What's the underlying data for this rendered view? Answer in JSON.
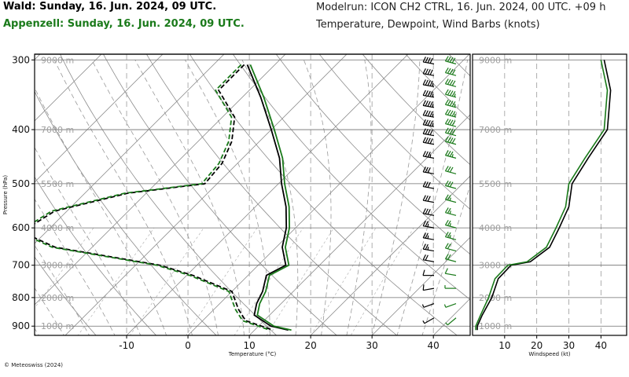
{
  "header": {
    "station1": "Wald: Sunday, 16. Jun. 2024, 09 UTC.",
    "station2": "Appenzell: Sunday, 16. Jun. 2024, 09 UTC.",
    "modelrun": "Modelrun: ICON CH2 CTRL, 16. Jun. 2024, 00 UTC. +09 h",
    "subtitle": "Temperature, Dewpoint, Wind Barbs (knots)"
  },
  "copyright": "© Meteoswiss (2024)",
  "colors": {
    "station1": "#000000",
    "station2": "#1a7a1a",
    "grid": "#9a9a9a"
  },
  "chart_data": [
    {
      "type": "line",
      "chart": "skew-t",
      "xlabel": "Temperature (°C)",
      "ylabel": "Pressure (hPa)",
      "x_ticks": [
        -10,
        0,
        10,
        20,
        30,
        40
      ],
      "xlim": [
        -25,
        46
      ],
      "y_ticks": [
        300,
        400,
        500,
        600,
        700,
        800,
        900
      ],
      "ylim": [
        935,
        293
      ],
      "y_scale": "log",
      "height_labels": [
        {
          "p": 300,
          "label": "9000 m"
        },
        {
          "p": 400,
          "label": "7000 m"
        },
        {
          "p": 500,
          "label": "5500 m"
        },
        {
          "p": 600,
          "label": "4000 m"
        },
        {
          "p": 700,
          "label": "3000 m"
        },
        {
          "p": 800,
          "label": "2000 m"
        },
        {
          "p": 900,
          "label": "1000 m"
        }
      ],
      "series": [
        {
          "name": "Wald",
          "variable": "temperature",
          "color": "#000000",
          "points": [
            [
              306,
              -34.5
            ],
            [
              350,
              -27
            ],
            [
              400,
              -20
            ],
            [
              450,
              -14
            ],
            [
              500,
              -9.5
            ],
            [
              550,
              -5
            ],
            [
              600,
              -1.5
            ],
            [
              650,
              1
            ],
            [
              700,
              4.5
            ],
            [
              730,
              3
            ],
            [
              780,
              5
            ],
            [
              820,
              6
            ],
            [
              860,
              7.5
            ],
            [
              900,
              12
            ],
            [
              915,
              15.5
            ]
          ]
        },
        {
          "name": "Wald",
          "variable": "dewpoint",
          "color": "#000000",
          "points": [
            [
              306,
              -35
            ],
            [
              340,
              -35
            ],
            [
              380,
              -28
            ],
            [
              420,
              -24.5
            ],
            [
              460,
              -22.5
            ],
            [
              500,
              -22
            ],
            [
              520,
              -33
            ],
            [
              560,
              -42
            ],
            [
              610,
              -44
            ],
            [
              650,
              -36
            ],
            [
              700,
              -16
            ],
            [
              730,
              -9
            ],
            [
              780,
              0
            ],
            [
              840,
              4
            ],
            [
              880,
              7
            ],
            [
              915,
              13
            ]
          ]
        },
        {
          "name": "Appenzell",
          "variable": "temperature",
          "color": "#1a7a1a",
          "points": [
            [
              306,
              -34
            ],
            [
              350,
              -26.5
            ],
            [
              400,
              -19.5
            ],
            [
              450,
              -13.5
            ],
            [
              500,
              -9
            ],
            [
              550,
              -4.5
            ],
            [
              600,
              -1
            ],
            [
              650,
              1.5
            ],
            [
              700,
              5
            ],
            [
              730,
              3.5
            ],
            [
              780,
              5.5
            ],
            [
              820,
              6.5
            ],
            [
              860,
              8
            ],
            [
              900,
              12.5
            ],
            [
              915,
              16
            ]
          ]
        },
        {
          "name": "Appenzell",
          "variable": "dewpoint",
          "color": "#1a7a1a",
          "points": [
            [
              306,
              -35.5
            ],
            [
              340,
              -35.5
            ],
            [
              380,
              -28.5
            ],
            [
              420,
              -25
            ],
            [
              460,
              -23
            ],
            [
              500,
              -22.5
            ],
            [
              520,
              -33.5
            ],
            [
              560,
              -42.5
            ],
            [
              610,
              -44.5
            ],
            [
              650,
              -36.5
            ],
            [
              700,
              -16.5
            ],
            [
              730,
              -9.5
            ],
            [
              780,
              -0.5
            ],
            [
              840,
              3.5
            ],
            [
              880,
              6.5
            ],
            [
              915,
              12.5
            ]
          ]
        }
      ]
    },
    {
      "type": "line",
      "chart": "wind-speed-profile",
      "xlabel": "Windspeed (kt)",
      "x_ticks": [
        10,
        20,
        30,
        40
      ],
      "xlim": [
        0,
        48
      ],
      "ylim": [
        935,
        293
      ],
      "height_labels": [
        "9000 m",
        "7000 m",
        "5500 m",
        "4000 m",
        "3000 m",
        "2000 m",
        "1000 m"
      ],
      "series": [
        {
          "name": "Wald",
          "color": "#000000",
          "points": [
            [
              300,
              41
            ],
            [
              340,
              43
            ],
            [
              400,
              42
            ],
            [
              450,
              36
            ],
            [
              500,
              31
            ],
            [
              550,
              30
            ],
            [
              600,
              27
            ],
            [
              650,
              24
            ],
            [
              690,
              18
            ],
            [
              700,
              12
            ],
            [
              740,
              8
            ],
            [
              800,
              6
            ],
            [
              860,
              3
            ],
            [
              900,
              1.5
            ],
            [
              915,
              1.5
            ]
          ]
        },
        {
          "name": "Appenzell",
          "color": "#1a7a1a",
          "points": [
            [
              300,
              40
            ],
            [
              340,
              42
            ],
            [
              400,
              41
            ],
            [
              450,
              35
            ],
            [
              500,
              30
            ],
            [
              550,
              29
            ],
            [
              600,
              26
            ],
            [
              650,
              23
            ],
            [
              690,
              17
            ],
            [
              700,
              11
            ],
            [
              740,
              7
            ],
            [
              800,
              5
            ],
            [
              860,
              2.5
            ],
            [
              900,
              1
            ],
            [
              915,
              1
            ]
          ]
        }
      ]
    }
  ],
  "wind_barbs": {
    "station1": [
      {
        "p": 305,
        "speed_kt": 40,
        "dir_deg": 280
      },
      {
        "p": 320,
        "speed_kt": 40,
        "dir_deg": 280
      },
      {
        "p": 335,
        "speed_kt": 45,
        "dir_deg": 280
      },
      {
        "p": 350,
        "speed_kt": 45,
        "dir_deg": 280
      },
      {
        "p": 365,
        "speed_kt": 45,
        "dir_deg": 280
      },
      {
        "p": 380,
        "speed_kt": 45,
        "dir_deg": 280
      },
      {
        "p": 395,
        "speed_kt": 45,
        "dir_deg": 280
      },
      {
        "p": 410,
        "speed_kt": 40,
        "dir_deg": 280
      },
      {
        "p": 425,
        "speed_kt": 40,
        "dir_deg": 280
      },
      {
        "p": 450,
        "speed_kt": 35,
        "dir_deg": 280
      },
      {
        "p": 480,
        "speed_kt": 30,
        "dir_deg": 280
      },
      {
        "p": 510,
        "speed_kt": 30,
        "dir_deg": 280
      },
      {
        "p": 540,
        "speed_kt": 30,
        "dir_deg": 280
      },
      {
        "p": 570,
        "speed_kt": 30,
        "dir_deg": 280
      },
      {
        "p": 600,
        "speed_kt": 25,
        "dir_deg": 280
      },
      {
        "p": 630,
        "speed_kt": 25,
        "dir_deg": 280
      },
      {
        "p": 660,
        "speed_kt": 25,
        "dir_deg": 280
      },
      {
        "p": 690,
        "speed_kt": 20,
        "dir_deg": 280
      },
      {
        "p": 730,
        "speed_kt": 10,
        "dir_deg": 270
      },
      {
        "p": 770,
        "speed_kt": 10,
        "dir_deg": 260
      },
      {
        "p": 820,
        "speed_kt": 5,
        "dir_deg": 250
      },
      {
        "p": 870,
        "speed_kt": 5,
        "dir_deg": 240
      }
    ],
    "station2": [
      {
        "p": 305,
        "speed_kt": 40,
        "dir_deg": 285
      },
      {
        "p": 320,
        "speed_kt": 40,
        "dir_deg": 285
      },
      {
        "p": 335,
        "speed_kt": 40,
        "dir_deg": 285
      },
      {
        "p": 350,
        "speed_kt": 45,
        "dir_deg": 285
      },
      {
        "p": 365,
        "speed_kt": 45,
        "dir_deg": 285
      },
      {
        "p": 380,
        "speed_kt": 45,
        "dir_deg": 285
      },
      {
        "p": 395,
        "speed_kt": 40,
        "dir_deg": 285
      },
      {
        "p": 410,
        "speed_kt": 40,
        "dir_deg": 285
      },
      {
        "p": 425,
        "speed_kt": 40,
        "dir_deg": 285
      },
      {
        "p": 450,
        "speed_kt": 35,
        "dir_deg": 285
      },
      {
        "p": 480,
        "speed_kt": 30,
        "dir_deg": 285
      },
      {
        "p": 510,
        "speed_kt": 30,
        "dir_deg": 285
      },
      {
        "p": 540,
        "speed_kt": 25,
        "dir_deg": 285
      },
      {
        "p": 570,
        "speed_kt": 25,
        "dir_deg": 285
      },
      {
        "p": 600,
        "speed_kt": 25,
        "dir_deg": 285
      },
      {
        "p": 630,
        "speed_kt": 25,
        "dir_deg": 285
      },
      {
        "p": 660,
        "speed_kt": 20,
        "dir_deg": 285
      },
      {
        "p": 690,
        "speed_kt": 20,
        "dir_deg": 285
      },
      {
        "p": 730,
        "speed_kt": 10,
        "dir_deg": 280
      },
      {
        "p": 770,
        "speed_kt": 5,
        "dir_deg": 270
      },
      {
        "p": 820,
        "speed_kt": 5,
        "dir_deg": 250
      },
      {
        "p": 870,
        "speed_kt": 5,
        "dir_deg": 230
      }
    ]
  }
}
